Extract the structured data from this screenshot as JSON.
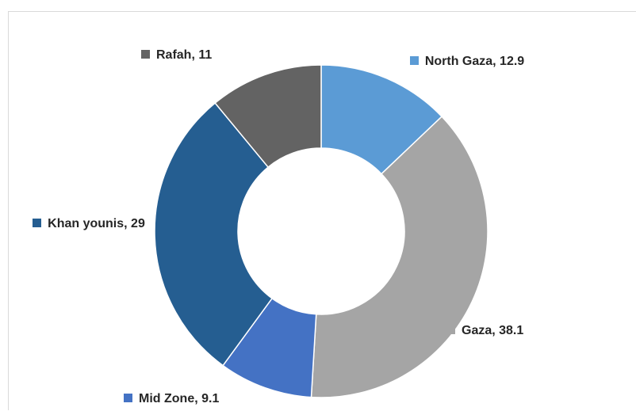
{
  "chart_data": {
    "type": "donut",
    "values": [
      12.9,
      38.1,
      9.1,
      29,
      11
    ],
    "value_labels": [
      "North Gaza, 12.9",
      "Gaza, 38.1",
      "Mid Zone, 9.1",
      "Khan younis, 29",
      "Rafah, 11"
    ],
    "colors": [
      "#5b9bd5",
      "#a5a5a5",
      "#4472c4",
      "#255e91",
      "#636363"
    ]
  }
}
